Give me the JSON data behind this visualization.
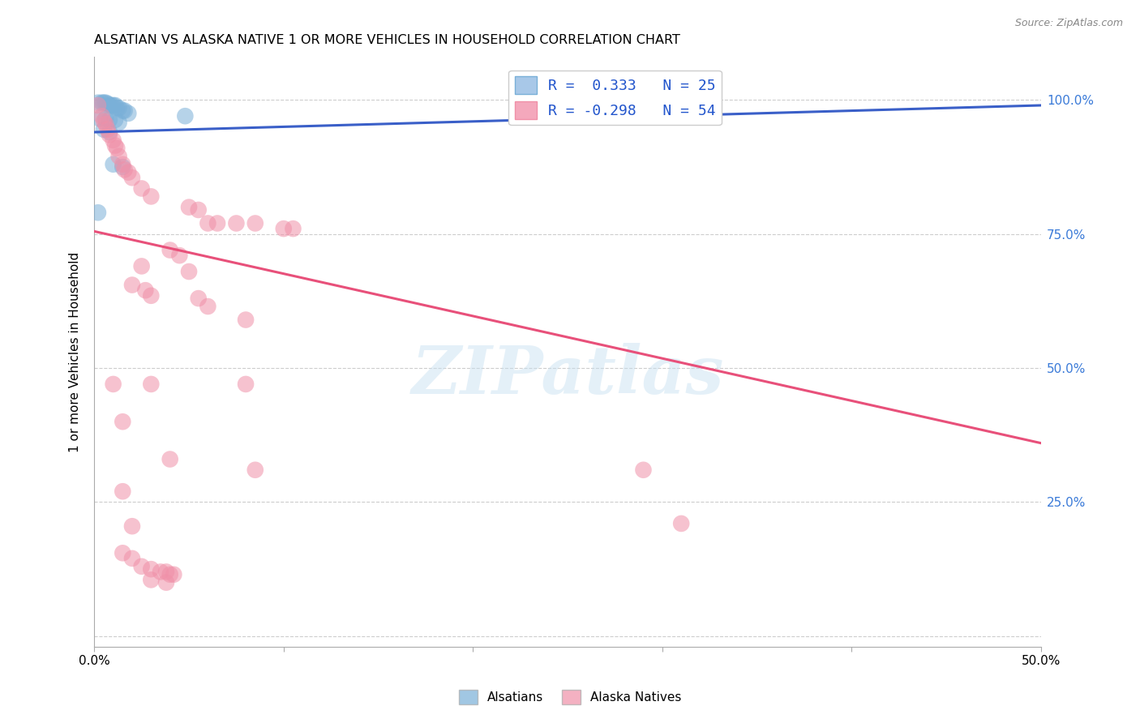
{
  "title": "ALSATIAN VS ALASKA NATIVE 1 OR MORE VEHICLES IN HOUSEHOLD CORRELATION CHART",
  "source": "Source: ZipAtlas.com",
  "ylabel": "1 or more Vehicles in Household",
  "xlim": [
    0.0,
    0.5
  ],
  "ylim": [
    -0.02,
    1.08
  ],
  "yticks": [
    0.0,
    0.25,
    0.5,
    0.75,
    1.0
  ],
  "ytick_labels": [
    "",
    "25.0%",
    "50.0%",
    "75.0%",
    "100.0%"
  ],
  "xticks": [
    0.0,
    0.1,
    0.2,
    0.3,
    0.4,
    0.5
  ],
  "xtick_labels": [
    "0.0%",
    "",
    "",
    "",
    "",
    "50.0%"
  ],
  "legend_entries": [
    {
      "label": "R =  0.333   N = 25",
      "color": "#a8c8e8"
    },
    {
      "label": "R = -0.298   N = 54",
      "color": "#f4a8bc"
    }
  ],
  "watermark_text": "ZIPatlas",
  "alsatian_color": "#7ab0d8",
  "alaska_native_color": "#f090a8",
  "alsatian_line_color": "#3a5fc8",
  "alaska_native_line_color": "#e8507a",
  "alsatian_line": [
    0.0,
    0.94,
    0.5,
    0.99
  ],
  "alaska_native_line": [
    0.0,
    0.755,
    0.5,
    0.36
  ],
  "alsatian_scatter": [
    [
      0.002,
      0.995
    ],
    [
      0.004,
      0.995
    ],
    [
      0.005,
      0.995
    ],
    [
      0.006,
      0.995
    ],
    [
      0.007,
      0.993
    ],
    [
      0.008,
      0.99
    ],
    [
      0.009,
      0.99
    ],
    [
      0.01,
      0.99
    ],
    [
      0.011,
      0.99
    ],
    [
      0.012,
      0.985
    ],
    [
      0.013,
      0.985
    ],
    [
      0.015,
      0.98
    ],
    [
      0.016,
      0.98
    ],
    [
      0.018,
      0.975
    ],
    [
      0.003,
      0.965
    ],
    [
      0.006,
      0.965
    ],
    [
      0.008,
      0.963
    ],
    [
      0.011,
      0.963
    ],
    [
      0.013,
      0.958
    ],
    [
      0.005,
      0.945
    ],
    [
      0.008,
      0.94
    ],
    [
      0.01,
      0.88
    ],
    [
      0.015,
      0.875
    ],
    [
      0.048,
      0.97
    ],
    [
      0.002,
      0.79
    ]
  ],
  "alaska_native_scatter": [
    [
      0.002,
      0.99
    ],
    [
      0.004,
      0.97
    ],
    [
      0.005,
      0.96
    ],
    [
      0.006,
      0.955
    ],
    [
      0.007,
      0.945
    ],
    [
      0.008,
      0.935
    ],
    [
      0.01,
      0.925
    ],
    [
      0.011,
      0.915
    ],
    [
      0.012,
      0.91
    ],
    [
      0.013,
      0.895
    ],
    [
      0.015,
      0.88
    ],
    [
      0.016,
      0.87
    ],
    [
      0.018,
      0.865
    ],
    [
      0.02,
      0.855
    ],
    [
      0.025,
      0.835
    ],
    [
      0.03,
      0.82
    ],
    [
      0.05,
      0.8
    ],
    [
      0.055,
      0.795
    ],
    [
      0.06,
      0.77
    ],
    [
      0.065,
      0.77
    ],
    [
      0.075,
      0.77
    ],
    [
      0.085,
      0.77
    ],
    [
      0.1,
      0.76
    ],
    [
      0.105,
      0.76
    ],
    [
      0.04,
      0.72
    ],
    [
      0.045,
      0.71
    ],
    [
      0.025,
      0.69
    ],
    [
      0.05,
      0.68
    ],
    [
      0.02,
      0.655
    ],
    [
      0.027,
      0.645
    ],
    [
      0.03,
      0.635
    ],
    [
      0.055,
      0.63
    ],
    [
      0.06,
      0.615
    ],
    [
      0.08,
      0.59
    ],
    [
      0.01,
      0.47
    ],
    [
      0.03,
      0.47
    ],
    [
      0.08,
      0.47
    ],
    [
      0.015,
      0.4
    ],
    [
      0.04,
      0.33
    ],
    [
      0.085,
      0.31
    ],
    [
      0.29,
      0.31
    ],
    [
      0.015,
      0.27
    ],
    [
      0.02,
      0.205
    ],
    [
      0.015,
      0.155
    ],
    [
      0.02,
      0.145
    ],
    [
      0.025,
      0.13
    ],
    [
      0.03,
      0.125
    ],
    [
      0.035,
      0.12
    ],
    [
      0.038,
      0.12
    ],
    [
      0.04,
      0.115
    ],
    [
      0.042,
      0.115
    ],
    [
      0.03,
      0.105
    ],
    [
      0.038,
      0.1
    ],
    [
      0.31,
      0.21
    ]
  ],
  "background_color": "#ffffff",
  "grid_color": "#c8c8c8"
}
